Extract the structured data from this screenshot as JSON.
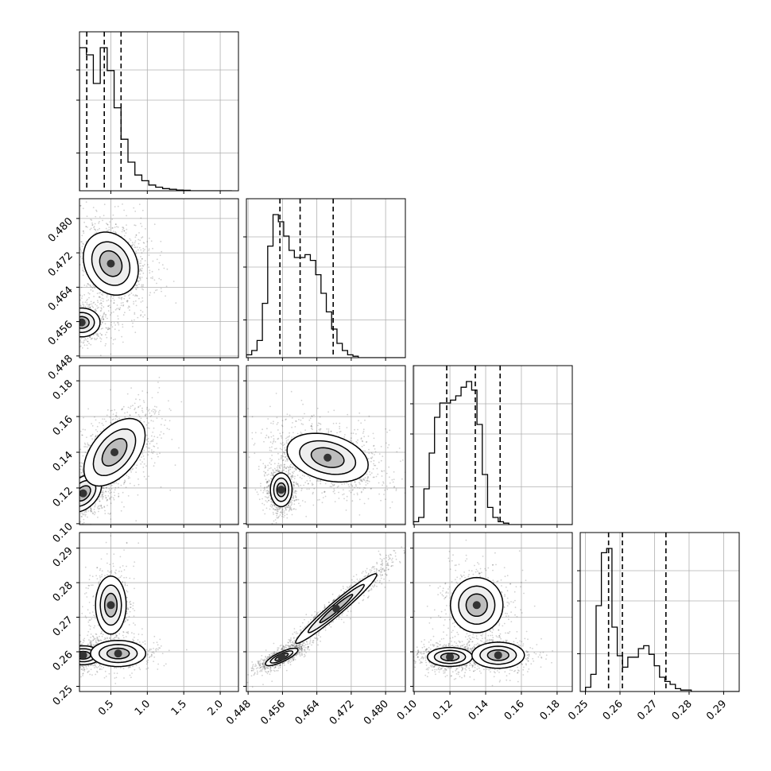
{
  "chart_data": {
    "type": "corner",
    "grid": true,
    "parameters": [
      {
        "ticks": [
          0.5,
          1.0,
          1.5,
          2.0
        ],
        "tick_labels": [
          "0.5",
          "1.0",
          "1.5",
          "2.0"
        ],
        "range": [
          0.07,
          2.25
        ],
        "quantiles": [
          0.17,
          0.41,
          0.64
        ],
        "hist_edges_start": 0.07,
        "hist_bin_width": 0.095,
        "hist_counts": [
          1.0,
          0.95,
          0.75,
          1.0,
          0.84,
          0.58,
          0.36,
          0.2,
          0.11,
          0.07,
          0.04,
          0.025,
          0.015,
          0.01,
          0.005,
          0.003,
          0.0,
          0.0,
          0.0,
          0.0,
          0.0,
          0.0
        ]
      },
      {
        "ticks": [
          0.448,
          0.456,
          0.464,
          0.472,
          0.48
        ],
        "tick_labels": [
          "0.448",
          "0.456",
          "0.464",
          "0.472",
          "0.480"
        ],
        "range": [
          0.4476,
          0.4846
        ],
        "quantiles": [
          0.4554,
          0.4601,
          0.4678
        ],
        "hist_edges_start": 0.4476,
        "hist_bin_width": 0.00124,
        "hist_counts": [
          0.02,
          0.05,
          0.12,
          0.38,
          0.78,
          1.0,
          0.95,
          0.85,
          0.75,
          0.7,
          0.7,
          0.72,
          0.68,
          0.58,
          0.45,
          0.32,
          0.2,
          0.1,
          0.05,
          0.02,
          0.01,
          0.0,
          0.0,
          0.0,
          0.0,
          0.0,
          0.0,
          0.0,
          0.0,
          0.0
        ]
      },
      {
        "ticks": [
          0.1,
          0.12,
          0.14,
          0.16,
          0.18
        ],
        "tick_labels": [
          "0.10",
          "0.12",
          "0.14",
          "0.16",
          "0.18"
        ],
        "range": [
          0.0995,
          0.1885
        ],
        "quantiles": [
          0.1182,
          0.1342,
          0.1481
        ],
        "hist_edges_start": 0.0995,
        "hist_bin_width": 0.00297,
        "hist_counts": [
          0.02,
          0.05,
          0.25,
          0.5,
          0.75,
          0.85,
          0.85,
          0.87,
          0.9,
          0.96,
          1.0,
          0.94,
          0.7,
          0.35,
          0.12,
          0.05,
          0.02,
          0.01,
          0.0,
          0.0,
          0.0,
          0.0,
          0.0,
          0.0,
          0.0,
          0.0,
          0.0,
          0.0,
          0.0,
          0.0
        ]
      },
      {
        "ticks": [
          0.25,
          0.26,
          0.27,
          0.28,
          0.29
        ],
        "tick_labels": [
          "0.25",
          "0.26",
          "0.27",
          "0.28",
          "0.29"
        ],
        "range": [
          0.2485,
          0.2945
        ],
        "quantiles": [
          0.2567,
          0.2607,
          0.2733
        ],
        "hist_edges_start": 0.2485,
        "hist_bin_width": 0.00153,
        "hist_counts": [
          0.0,
          0.03,
          0.12,
          0.6,
          0.97,
          1.0,
          0.45,
          0.25,
          0.17,
          0.24,
          0.24,
          0.3,
          0.32,
          0.26,
          0.18,
          0.1,
          0.07,
          0.05,
          0.02,
          0.01,
          0.01,
          0.0,
          0.0,
          0.0,
          0.0,
          0.0,
          0.0,
          0.0,
          0.0,
          0.0
        ]
      }
    ],
    "pairs": [
      {
        "row": 1,
        "col": 0,
        "clusters": [
          {
            "mx": 0.1,
            "my": 0.4558,
            "sx": 0.12,
            "sy": 0.0016,
            "r": 0.0,
            "w": 0.45
          },
          {
            "mx": 0.5,
            "my": 0.4695,
            "sx": 0.18,
            "sy": 0.0035,
            "r": -0.2,
            "w": 0.55
          }
        ]
      },
      {
        "row": 2,
        "col": 0,
        "clusters": [
          {
            "mx": 0.12,
            "my": 0.117,
            "sx": 0.12,
            "sy": 0.005,
            "r": 0.4,
            "w": 0.45
          },
          {
            "mx": 0.55,
            "my": 0.14,
            "sx": 0.2,
            "sy": 0.009,
            "r": 0.5,
            "w": 0.55
          }
        ]
      },
      {
        "row": 2,
        "col": 1,
        "clusters": [
          {
            "mx": 0.4557,
            "my": 0.119,
            "sx": 0.0012,
            "sy": 0.0045,
            "r": 0.0,
            "w": 0.4
          },
          {
            "mx": 0.4665,
            "my": 0.137,
            "sx": 0.0045,
            "sy": 0.0065,
            "r": -0.3,
            "w": 0.6
          }
        ]
      },
      {
        "row": 3,
        "col": 0,
        "clusters": [
          {
            "mx": 0.12,
            "my": 0.259,
            "sx": 0.12,
            "sy": 0.0013,
            "r": 0.0,
            "w": 0.5
          },
          {
            "mx": 0.5,
            "my": 0.2735,
            "sx": 0.1,
            "sy": 0.004,
            "r": 0.0,
            "w": 0.3
          },
          {
            "mx": 0.6,
            "my": 0.2595,
            "sx": 0.18,
            "sy": 0.0018,
            "r": 0.0,
            "w": 0.2
          }
        ]
      },
      {
        "row": 3,
        "col": 1,
        "clusters": [
          {
            "mx": 0.4558,
            "my": 0.2585,
            "sx": 0.0018,
            "sy": 0.0012,
            "r": 0.8,
            "w": 0.45
          },
          {
            "mx": 0.4685,
            "my": 0.2725,
            "sx": 0.0045,
            "sy": 0.0048,
            "r": 0.97,
            "w": 0.55
          }
        ]
      },
      {
        "row": 3,
        "col": 2,
        "clusters": [
          {
            "mx": 0.12,
            "my": 0.2585,
            "sx": 0.006,
            "sy": 0.0013,
            "r": 0.0,
            "w": 0.45
          },
          {
            "mx": 0.135,
            "my": 0.2735,
            "sx": 0.007,
            "sy": 0.0038,
            "r": 0.0,
            "w": 0.3
          },
          {
            "mx": 0.147,
            "my": 0.259,
            "sx": 0.007,
            "sy": 0.0018,
            "r": 0.0,
            "w": 0.25
          }
        ]
      }
    ]
  }
}
